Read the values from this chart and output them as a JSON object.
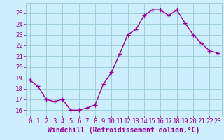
{
  "x": [
    0,
    1,
    2,
    3,
    4,
    5,
    6,
    7,
    8,
    9,
    10,
    11,
    12,
    13,
    14,
    15,
    16,
    17,
    18,
    19,
    20,
    21,
    22,
    23
  ],
  "y": [
    18.8,
    18.2,
    17.0,
    16.8,
    17.0,
    16.0,
    16.0,
    16.2,
    16.5,
    18.4,
    19.5,
    21.2,
    23.0,
    23.5,
    24.8,
    25.3,
    25.3,
    24.8,
    25.3,
    24.1,
    23.0,
    22.2,
    21.5,
    21.3
  ],
  "line_color": "#990099",
  "marker": "+",
  "marker_size": 4,
  "bg_color": "#cceeff",
  "grid_color": "#99cccc",
  "xlabel": "Windchill (Refroidissement éolien,°C)",
  "xlabel_color": "#990099",
  "xlabel_fontsize": 7,
  "ylabel_ticks": [
    16,
    17,
    18,
    19,
    20,
    21,
    22,
    23,
    24,
    25
  ],
  "xtick_labels": [
    "0",
    "1",
    "2",
    "3",
    "4",
    "5",
    "6",
    "7",
    "8",
    "9",
    "10",
    "11",
    "12",
    "13",
    "14",
    "15",
    "16",
    "17",
    "18",
    "19",
    "20",
    "21",
    "22",
    "23"
  ],
  "xlim": [
    -0.5,
    23.5
  ],
  "ylim": [
    15.5,
    25.9
  ],
  "tick_label_color": "#990099",
  "tick_fontsize": 6.5,
  "linewidth": 1.0,
  "spine_color": "#99cccc"
}
